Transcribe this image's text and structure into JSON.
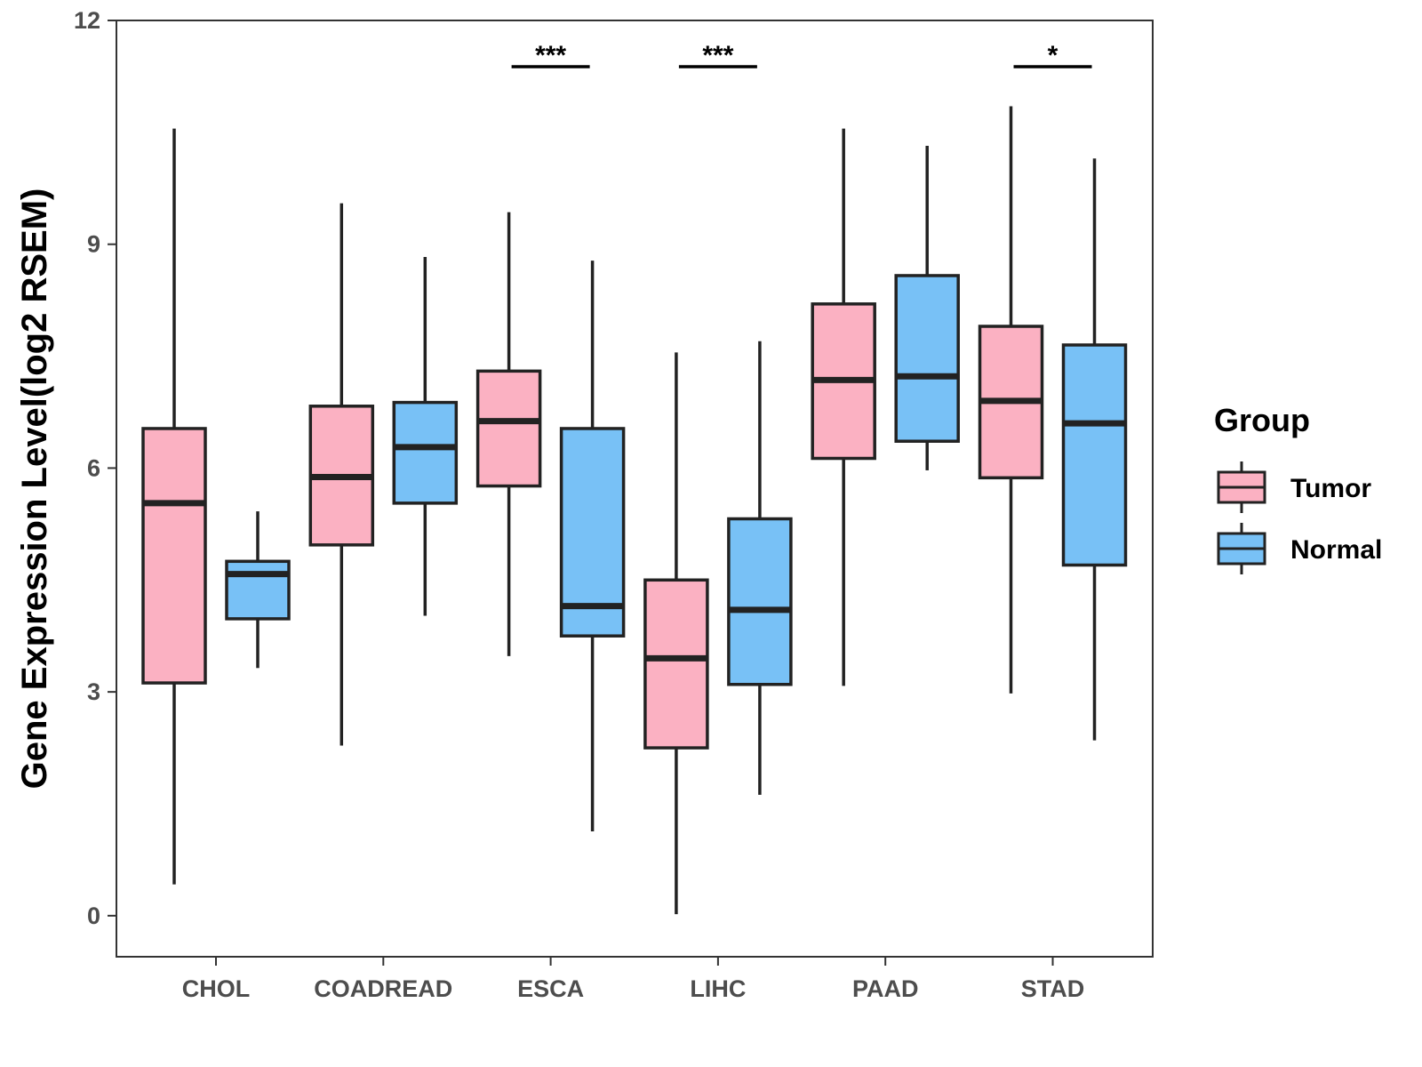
{
  "chart_data": {
    "type": "boxplot",
    "title": "",
    "xlabel": "",
    "ylabel": "Gene Expression Level(log2 RSEM)",
    "ylim": [
      -0.55,
      12
    ],
    "yticks": [
      0,
      3,
      6,
      9,
      12
    ],
    "categories": [
      "CHOL",
      "COADREAD",
      "ESCA",
      "LIHC",
      "PAAD",
      "STAD"
    ],
    "legend": {
      "title": "Group",
      "position": "right",
      "entries": [
        "Tumor",
        "Normal"
      ]
    },
    "colors": {
      "Tumor": "#FBB1C2",
      "Normal": "#78C1F6",
      "outline": "#222222"
    },
    "series": [
      {
        "name": "Tumor",
        "boxes": [
          {
            "category": "CHOL",
            "min": 0.42,
            "q1": 3.12,
            "median": 5.53,
            "q3": 6.53,
            "max": 10.55
          },
          {
            "category": "COADREAD",
            "min": 2.28,
            "q1": 4.97,
            "median": 5.88,
            "q3": 6.83,
            "max": 9.55
          },
          {
            "category": "ESCA",
            "min": 3.48,
            "q1": 5.76,
            "median": 6.63,
            "q3": 7.3,
            "max": 9.43
          },
          {
            "category": "LIHC",
            "min": 0.02,
            "q1": 2.25,
            "median": 3.45,
            "q3": 4.5,
            "max": 7.55
          },
          {
            "category": "PAAD",
            "min": 3.08,
            "q1": 6.13,
            "median": 7.18,
            "q3": 8.2,
            "max": 10.55
          },
          {
            "category": "STAD",
            "min": 2.98,
            "q1": 5.87,
            "median": 6.9,
            "q3": 7.9,
            "max": 10.85
          }
        ]
      },
      {
        "name": "Normal",
        "boxes": [
          {
            "category": "CHOL",
            "min": 3.32,
            "q1": 3.98,
            "median": 4.58,
            "q3": 4.75,
            "max": 5.42
          },
          {
            "category": "COADREAD",
            "min": 4.02,
            "q1": 5.53,
            "median": 6.28,
            "q3": 6.88,
            "max": 8.83
          },
          {
            "category": "ESCA",
            "min": 1.13,
            "q1": 3.75,
            "median": 4.15,
            "q3": 6.53,
            "max": 8.78
          },
          {
            "category": "LIHC",
            "min": 1.62,
            "q1": 3.1,
            "median": 4.1,
            "q3": 5.32,
            "max": 7.7
          },
          {
            "category": "PAAD",
            "min": 5.97,
            "q1": 6.36,
            "median": 7.23,
            "q3": 8.58,
            "max": 10.32
          },
          {
            "category": "STAD",
            "min": 2.35,
            "q1": 4.7,
            "median": 6.6,
            "q3": 7.65,
            "max": 10.15
          }
        ]
      }
    ],
    "annotations": [
      {
        "category": "ESCA",
        "label": "***",
        "y": 11.38
      },
      {
        "category": "LIHC",
        "label": "***",
        "y": 11.38
      },
      {
        "category": "STAD",
        "label": "*",
        "y": 11.38
      }
    ]
  }
}
